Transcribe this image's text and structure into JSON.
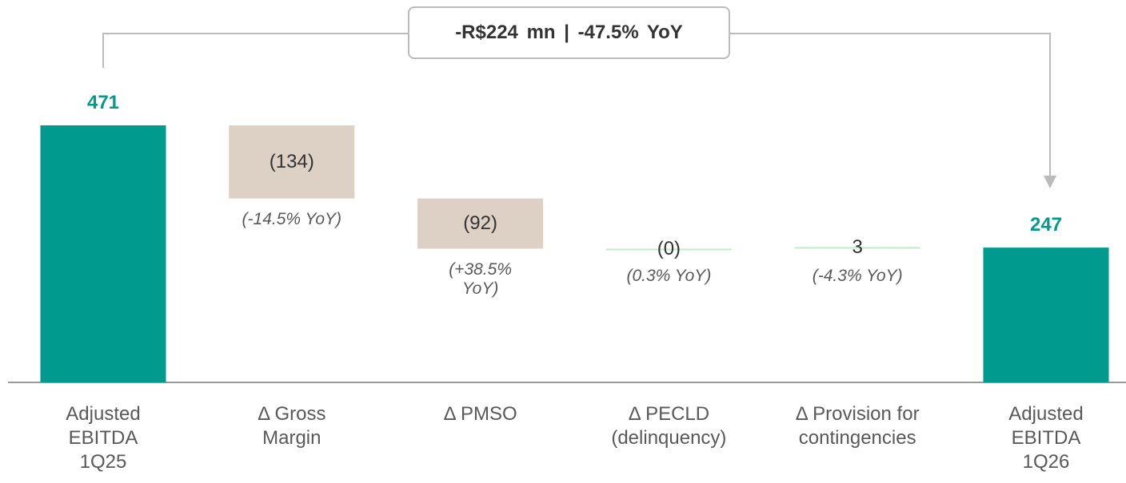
{
  "chart_data": {
    "type": "waterfall",
    "callout": "-R$224 mn | -47.5% YoY",
    "categories": [
      "Adjusted EBITDA 1Q25",
      "Δ Gross Margin",
      "Δ PMSO",
      "Δ PECLD (delinquency)",
      "Δ Provision for contingencies",
      "Adjusted EBITDA 1Q26"
    ],
    "values": [
      471,
      -134,
      -92,
      0,
      3,
      247
    ],
    "value_labels": [
      "471",
      "(134)",
      "(92)",
      "(0)",
      "3",
      "247"
    ],
    "notes": [
      null,
      "(-14.5% YoY)",
      "(+38.5% YoY)",
      "(0.3% YoY)",
      "(-4.3% YoY)",
      null
    ],
    "is_total": [
      true,
      false,
      false,
      false,
      false,
      true
    ],
    "colors": {
      "total": "#009a8e",
      "negative": "#ddd0c4",
      "positive": "#c6e9c9"
    }
  }
}
